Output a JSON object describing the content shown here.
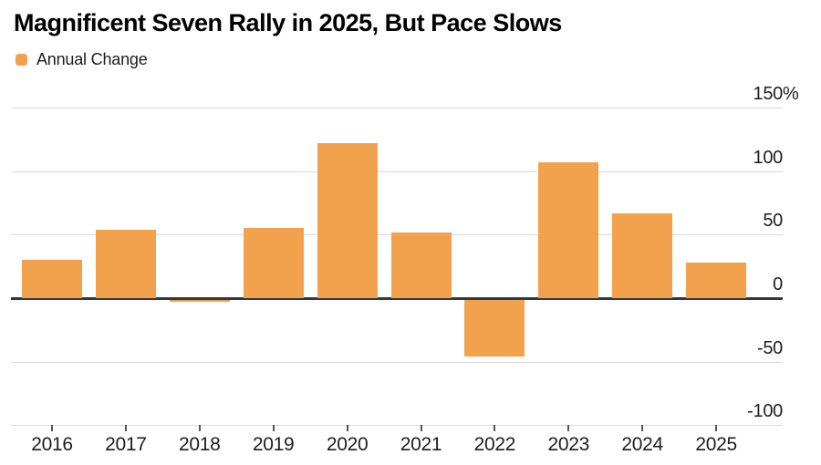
{
  "chart_data": {
    "type": "bar",
    "title": "Magnificent Seven Rally in 2025, But Pace Slows",
    "legend": "Annual Change",
    "categories": [
      "2016",
      "2017",
      "2018",
      "2019",
      "2020",
      "2021",
      "2022",
      "2023",
      "2024",
      "2025"
    ],
    "values": [
      30,
      54,
      -2,
      55,
      122,
      52,
      -45,
      107,
      67,
      28
    ],
    "unit": "%",
    "xlabel": "",
    "ylabel": "",
    "ylim": [
      -100,
      150
    ],
    "grid": true,
    "legend_position": "top-left",
    "y_ticks": [
      {
        "value": 150,
        "label": "150",
        "suffix": "%"
      },
      {
        "value": 100,
        "label": "100",
        "suffix": ""
      },
      {
        "value": 50,
        "label": "50",
        "suffix": ""
      },
      {
        "value": 0,
        "label": "0",
        "suffix": ""
      },
      {
        "value": -50,
        "label": "-50",
        "suffix": ""
      },
      {
        "value": -100,
        "label": "-100",
        "suffix": ""
      }
    ],
    "colors": {
      "bar": "#F2A24C",
      "grid_line": "#D8D8D8",
      "zero_line": "#36373B",
      "tick_mark": "#555555",
      "axis_text": "#1E1E1E",
      "title_text": "#000000"
    }
  }
}
